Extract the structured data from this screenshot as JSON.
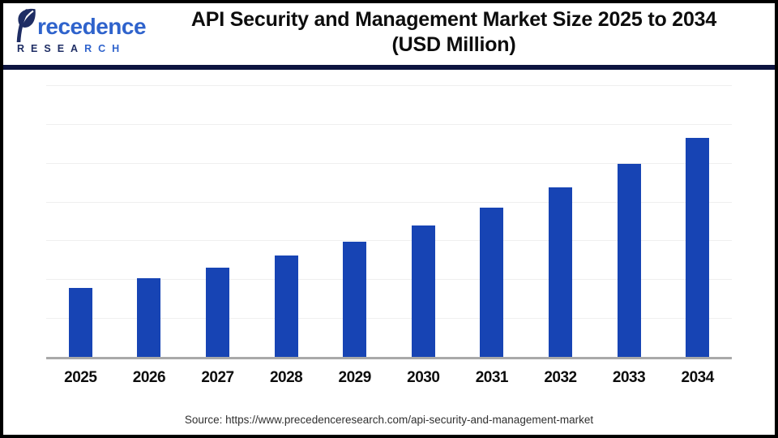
{
  "header": {
    "logo": {
      "brand_rest": "recedence",
      "sub_navy": "RESEA",
      "sub_blue": "RCH"
    },
    "title_line1": "API Security and Management Market Size 2025 to 2034",
    "title_line2": "(USD Million)"
  },
  "chart_data": {
    "type": "bar",
    "title": "API Security and Management Market Size 2025 to 2034 (USD Million)",
    "categories": [
      "2025",
      "2026",
      "2027",
      "2028",
      "2029",
      "2030",
      "2031",
      "2032",
      "2033",
      "2034"
    ],
    "values": [
      10174,
      11568,
      13153,
      14956,
      17005,
      19335,
      21984,
      24996,
      28421,
      32295
    ],
    "xlabel": "",
    "ylabel": "",
    "ylim": [
      0,
      40000
    ],
    "y_axis_tick_labels_visible": false,
    "gridlines": {
      "orientation": "horizontal",
      "intervals": 7,
      "visible": true
    },
    "legend": "none",
    "bar_color": "#1744b4"
  },
  "footer": {
    "source": "Source: https://www.precedenceresearch.com/api-security-and-management-market"
  },
  "colors": {
    "bar": "#1744b4",
    "header_rule": "#0d1440",
    "gridline": "#efefef",
    "baseline": "#a9a9a9",
    "logo_navy": "#1e2d64",
    "logo_blue": "#2f63cc",
    "title_text": "#0d0d0d",
    "source_text": "#303030"
  }
}
